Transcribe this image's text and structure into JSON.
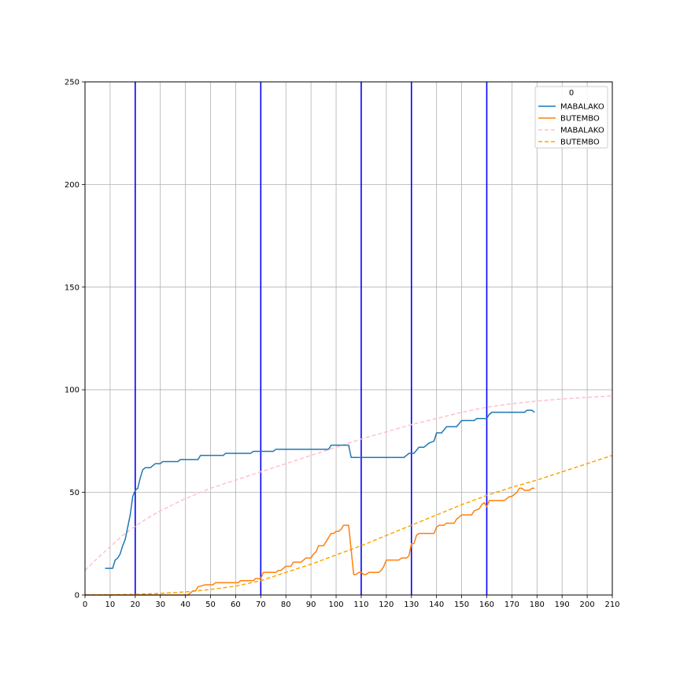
{
  "chart_data": {
    "type": "line",
    "title": "",
    "xlabel": "",
    "ylabel": "",
    "xlim": [
      0,
      210
    ],
    "ylim": [
      0,
      250
    ],
    "xticks": [
      0,
      10,
      20,
      30,
      40,
      50,
      60,
      70,
      80,
      90,
      100,
      110,
      120,
      130,
      140,
      150,
      160,
      170,
      180,
      190,
      200,
      210
    ],
    "yticks": [
      0,
      50,
      100,
      150,
      200,
      250
    ],
    "grid": true,
    "vertical_lines": {
      "color": "#0000ff",
      "x": [
        20,
        70,
        110,
        130,
        160
      ]
    },
    "legend": {
      "title": "0",
      "position": "top-right",
      "entries": [
        {
          "label": "MABALAKO",
          "color": "#1f77b4",
          "style": "solid"
        },
        {
          "label": "BUTEMBO",
          "color": "#ff7f0e",
          "style": "solid"
        },
        {
          "label": "MABALAKO",
          "color": "#ffc0cb",
          "style": "dashed"
        },
        {
          "label": "BUTEMBO",
          "color": "#ffa500",
          "style": "dashed"
        }
      ]
    },
    "series": [
      {
        "name": "MABALAKO",
        "color": "#1f77b4",
        "style": "solid",
        "points": [
          [
            8,
            13
          ],
          [
            11,
            13
          ],
          [
            12,
            17
          ],
          [
            13,
            18
          ],
          [
            14,
            20
          ],
          [
            15,
            24
          ],
          [
            16,
            27
          ],
          [
            17,
            33
          ],
          [
            18,
            39
          ],
          [
            19,
            48
          ],
          [
            20,
            51
          ],
          [
            21,
            52
          ],
          [
            22,
            57
          ],
          [
            23,
            61
          ],
          [
            24,
            62
          ],
          [
            26,
            62
          ],
          [
            27,
            63
          ],
          [
            28,
            64
          ],
          [
            30,
            64
          ],
          [
            31,
            65
          ],
          [
            37,
            65
          ],
          [
            38,
            66
          ],
          [
            45,
            66
          ],
          [
            46,
            68
          ],
          [
            55,
            68
          ],
          [
            56,
            69
          ],
          [
            66,
            69
          ],
          [
            67,
            70
          ],
          [
            75,
            70
          ],
          [
            76,
            71
          ],
          [
            97,
            71
          ],
          [
            98,
            73
          ],
          [
            105,
            73
          ],
          [
            106,
            67
          ],
          [
            127,
            67
          ],
          [
            129,
            69
          ],
          [
            131,
            69
          ],
          [
            133,
            72
          ],
          [
            135,
            72
          ],
          [
            137,
            74
          ],
          [
            139,
            75
          ],
          [
            140,
            79
          ],
          [
            142,
            79
          ],
          [
            144,
            82
          ],
          [
            148,
            82
          ],
          [
            150,
            85
          ],
          [
            155,
            85
          ],
          [
            156,
            86
          ],
          [
            160,
            86
          ],
          [
            161,
            88
          ],
          [
            162,
            89
          ],
          [
            175,
            89
          ],
          [
            176,
            90
          ],
          [
            178,
            90
          ],
          [
            179,
            89
          ]
        ]
      },
      {
        "name": "BUTEMBO",
        "color": "#ff7f0e",
        "style": "solid",
        "points": [
          [
            0,
            0
          ],
          [
            41,
            0
          ],
          [
            42,
            1
          ],
          [
            43,
            2
          ],
          [
            44,
            2
          ],
          [
            45,
            4
          ],
          [
            48,
            5
          ],
          [
            51,
            5
          ],
          [
            52,
            6
          ],
          [
            61,
            6
          ],
          [
            62,
            7
          ],
          [
            67,
            7
          ],
          [
            68,
            8
          ],
          [
            70,
            8
          ],
          [
            71,
            11
          ],
          [
            76,
            11
          ],
          [
            77,
            12
          ],
          [
            78,
            12
          ],
          [
            79,
            13
          ],
          [
            80,
            14
          ],
          [
            82,
            14
          ],
          [
            83,
            16
          ],
          [
            86,
            16
          ],
          [
            87,
            17
          ],
          [
            88,
            18
          ],
          [
            90,
            18
          ],
          [
            91,
            20
          ],
          [
            92,
            21
          ],
          [
            93,
            24
          ],
          [
            95,
            24
          ],
          [
            96,
            26
          ],
          [
            97,
            28
          ],
          [
            98,
            30
          ],
          [
            99,
            30
          ],
          [
            100,
            31
          ],
          [
            101,
            31
          ],
          [
            102,
            32
          ],
          [
            103,
            34
          ],
          [
            105,
            34
          ],
          [
            107,
            10
          ],
          [
            108,
            10
          ],
          [
            109,
            11
          ],
          [
            110,
            11
          ],
          [
            111,
            10
          ],
          [
            112,
            10
          ],
          [
            113,
            11
          ],
          [
            117,
            11
          ],
          [
            118,
            12
          ],
          [
            119,
            14
          ],
          [
            120,
            17
          ],
          [
            125,
            17
          ],
          [
            126,
            18
          ],
          [
            128,
            18
          ],
          [
            129,
            19
          ],
          [
            130,
            25
          ],
          [
            131,
            25
          ],
          [
            132,
            29
          ],
          [
            133,
            30
          ],
          [
            139,
            30
          ],
          [
            140,
            33
          ],
          [
            141,
            34
          ],
          [
            143,
            34
          ],
          [
            144,
            35
          ],
          [
            147,
            35
          ],
          [
            148,
            37
          ],
          [
            149,
            38
          ],
          [
            150,
            39
          ],
          [
            154,
            39
          ],
          [
            155,
            41
          ],
          [
            157,
            42
          ],
          [
            158,
            44
          ],
          [
            159,
            45
          ],
          [
            160,
            43
          ],
          [
            161,
            46
          ],
          [
            167,
            46
          ],
          [
            168,
            47
          ],
          [
            169,
            48
          ],
          [
            170,
            48
          ],
          [
            171,
            49
          ],
          [
            172,
            50
          ],
          [
            173,
            52
          ],
          [
            174,
            52
          ],
          [
            175,
            51
          ],
          [
            177,
            51
          ],
          [
            178,
            52
          ],
          [
            179,
            52
          ]
        ]
      },
      {
        "name": "MABALAKO",
        "color": "#ffc0cb",
        "style": "dashed",
        "points": [
          [
            0,
            12
          ],
          [
            5,
            18
          ],
          [
            10,
            23.5
          ],
          [
            15,
            29
          ],
          [
            20,
            33.5
          ],
          [
            25,
            37.5
          ],
          [
            30,
            41
          ],
          [
            35,
            44
          ],
          [
            40,
            47
          ],
          [
            50,
            52
          ],
          [
            60,
            56
          ],
          [
            70,
            60
          ],
          [
            80,
            64
          ],
          [
            90,
            68
          ],
          [
            100,
            72
          ],
          [
            110,
            76
          ],
          [
            120,
            79.5
          ],
          [
            130,
            83
          ],
          [
            140,
            86
          ],
          [
            150,
            89
          ],
          [
            160,
            91.5
          ],
          [
            170,
            93.2
          ],
          [
            180,
            94.5
          ],
          [
            190,
            95.5
          ],
          [
            200,
            96.3
          ],
          [
            210,
            97
          ]
        ]
      },
      {
        "name": "BUTEMBO",
        "color": "#ffa500",
        "style": "dashed",
        "points": [
          [
            0,
            0
          ],
          [
            10,
            0.1
          ],
          [
            20,
            0.3
          ],
          [
            30,
            0.8
          ],
          [
            40,
            1.5
          ],
          [
            50,
            2.7
          ],
          [
            60,
            4.3
          ],
          [
            70,
            7
          ],
          [
            80,
            11
          ],
          [
            90,
            15
          ],
          [
            100,
            19.5
          ],
          [
            110,
            24
          ],
          [
            120,
            29
          ],
          [
            130,
            34
          ],
          [
            140,
            39
          ],
          [
            150,
            44
          ],
          [
            160,
            48.5
          ],
          [
            170,
            52.5
          ],
          [
            180,
            56
          ],
          [
            190,
            60
          ],
          [
            200,
            64
          ],
          [
            210,
            68
          ]
        ]
      }
    ]
  }
}
